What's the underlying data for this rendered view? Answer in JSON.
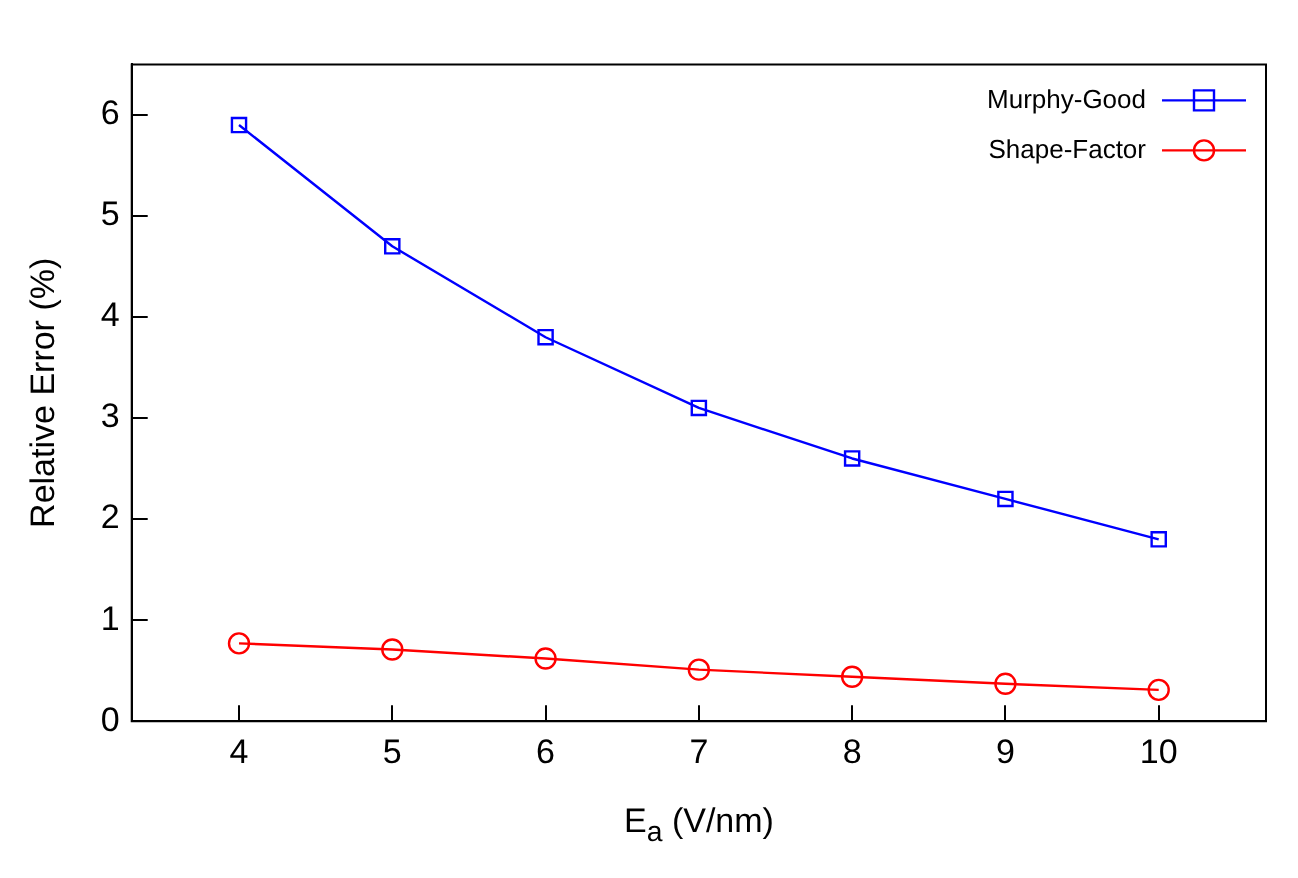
{
  "chart_data": {
    "type": "line",
    "xlabel": "E$_{a}$ (V/nm)",
    "ylabel": "Relative Error (%)",
    "x": [
      4,
      5,
      6,
      7,
      8,
      9,
      10
    ],
    "series": [
      {
        "name": "Murphy-Good",
        "color": "#0000ff",
        "marker": "square",
        "values": [
          5.9,
          4.7,
          3.8,
          3.1,
          2.6,
          2.2,
          1.8
        ]
      },
      {
        "name": "Shape-Factor",
        "color": "#ff0000",
        "marker": "circle",
        "values": [
          0.77,
          0.71,
          0.62,
          0.51,
          0.44,
          0.37,
          0.31
        ]
      }
    ],
    "xlim": [
      3.3,
      10.7
    ],
    "xticks": [
      4,
      5,
      6,
      7,
      8,
      9,
      10
    ],
    "ylim": [
      0,
      6.5
    ],
    "yticks": [
      0,
      1,
      2,
      3,
      4,
      5,
      6
    ],
    "grid": false,
    "legend": "top right",
    "line_style": "solid"
  }
}
